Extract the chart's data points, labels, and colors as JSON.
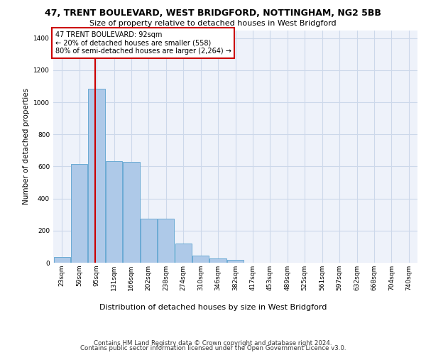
{
  "title1": "47, TRENT BOULEVARD, WEST BRIDGFORD, NOTTINGHAM, NG2 5BB",
  "title2": "Size of property relative to detached houses in West Bridgford",
  "xlabel": "Distribution of detached houses by size in West Bridgford",
  "ylabel": "Number of detached properties",
  "footnote1": "Contains HM Land Registry data © Crown copyright and database right 2024.",
  "footnote2": "Contains public sector information licensed under the Open Government Licence v3.0.",
  "property_label": "47 TRENT BOULEVARD: 92sqm",
  "annotation_line1": "← 20% of detached houses are smaller (558)",
  "annotation_line2": "80% of semi-detached houses are larger (2,264) →",
  "bar_color": "#aec9e8",
  "bar_edge_color": "#6aaad4",
  "vline_color": "#cc0000",
  "annotation_box_color": "#cc0000",
  "grid_color": "#ccd8ea",
  "bg_color": "#eef2fa",
  "categories": [
    "23sqm",
    "59sqm",
    "95sqm",
    "131sqm",
    "166sqm",
    "202sqm",
    "238sqm",
    "274sqm",
    "310sqm",
    "346sqm",
    "382sqm",
    "417sqm",
    "453sqm",
    "489sqm",
    "525sqm",
    "561sqm",
    "597sqm",
    "632sqm",
    "668sqm",
    "704sqm",
    "740sqm"
  ],
  "bar_heights": [
    35,
    615,
    1085,
    635,
    630,
    275,
    275,
    120,
    45,
    25,
    17,
    0,
    0,
    0,
    0,
    0,
    0,
    0,
    0,
    0,
    0
  ],
  "vline_x": 1.92,
  "ylim": [
    0,
    1450
  ],
  "yticks": [
    0,
    200,
    400,
    600,
    800,
    1000,
    1200,
    1400
  ],
  "title1_fontsize": 9.0,
  "title2_fontsize": 8.0,
  "ylabel_fontsize": 7.5,
  "xlabel_fontsize": 8.0,
  "tick_fontsize": 6.5,
  "footnote_fontsize": 6.2,
  "annot_fontsize": 7.0
}
